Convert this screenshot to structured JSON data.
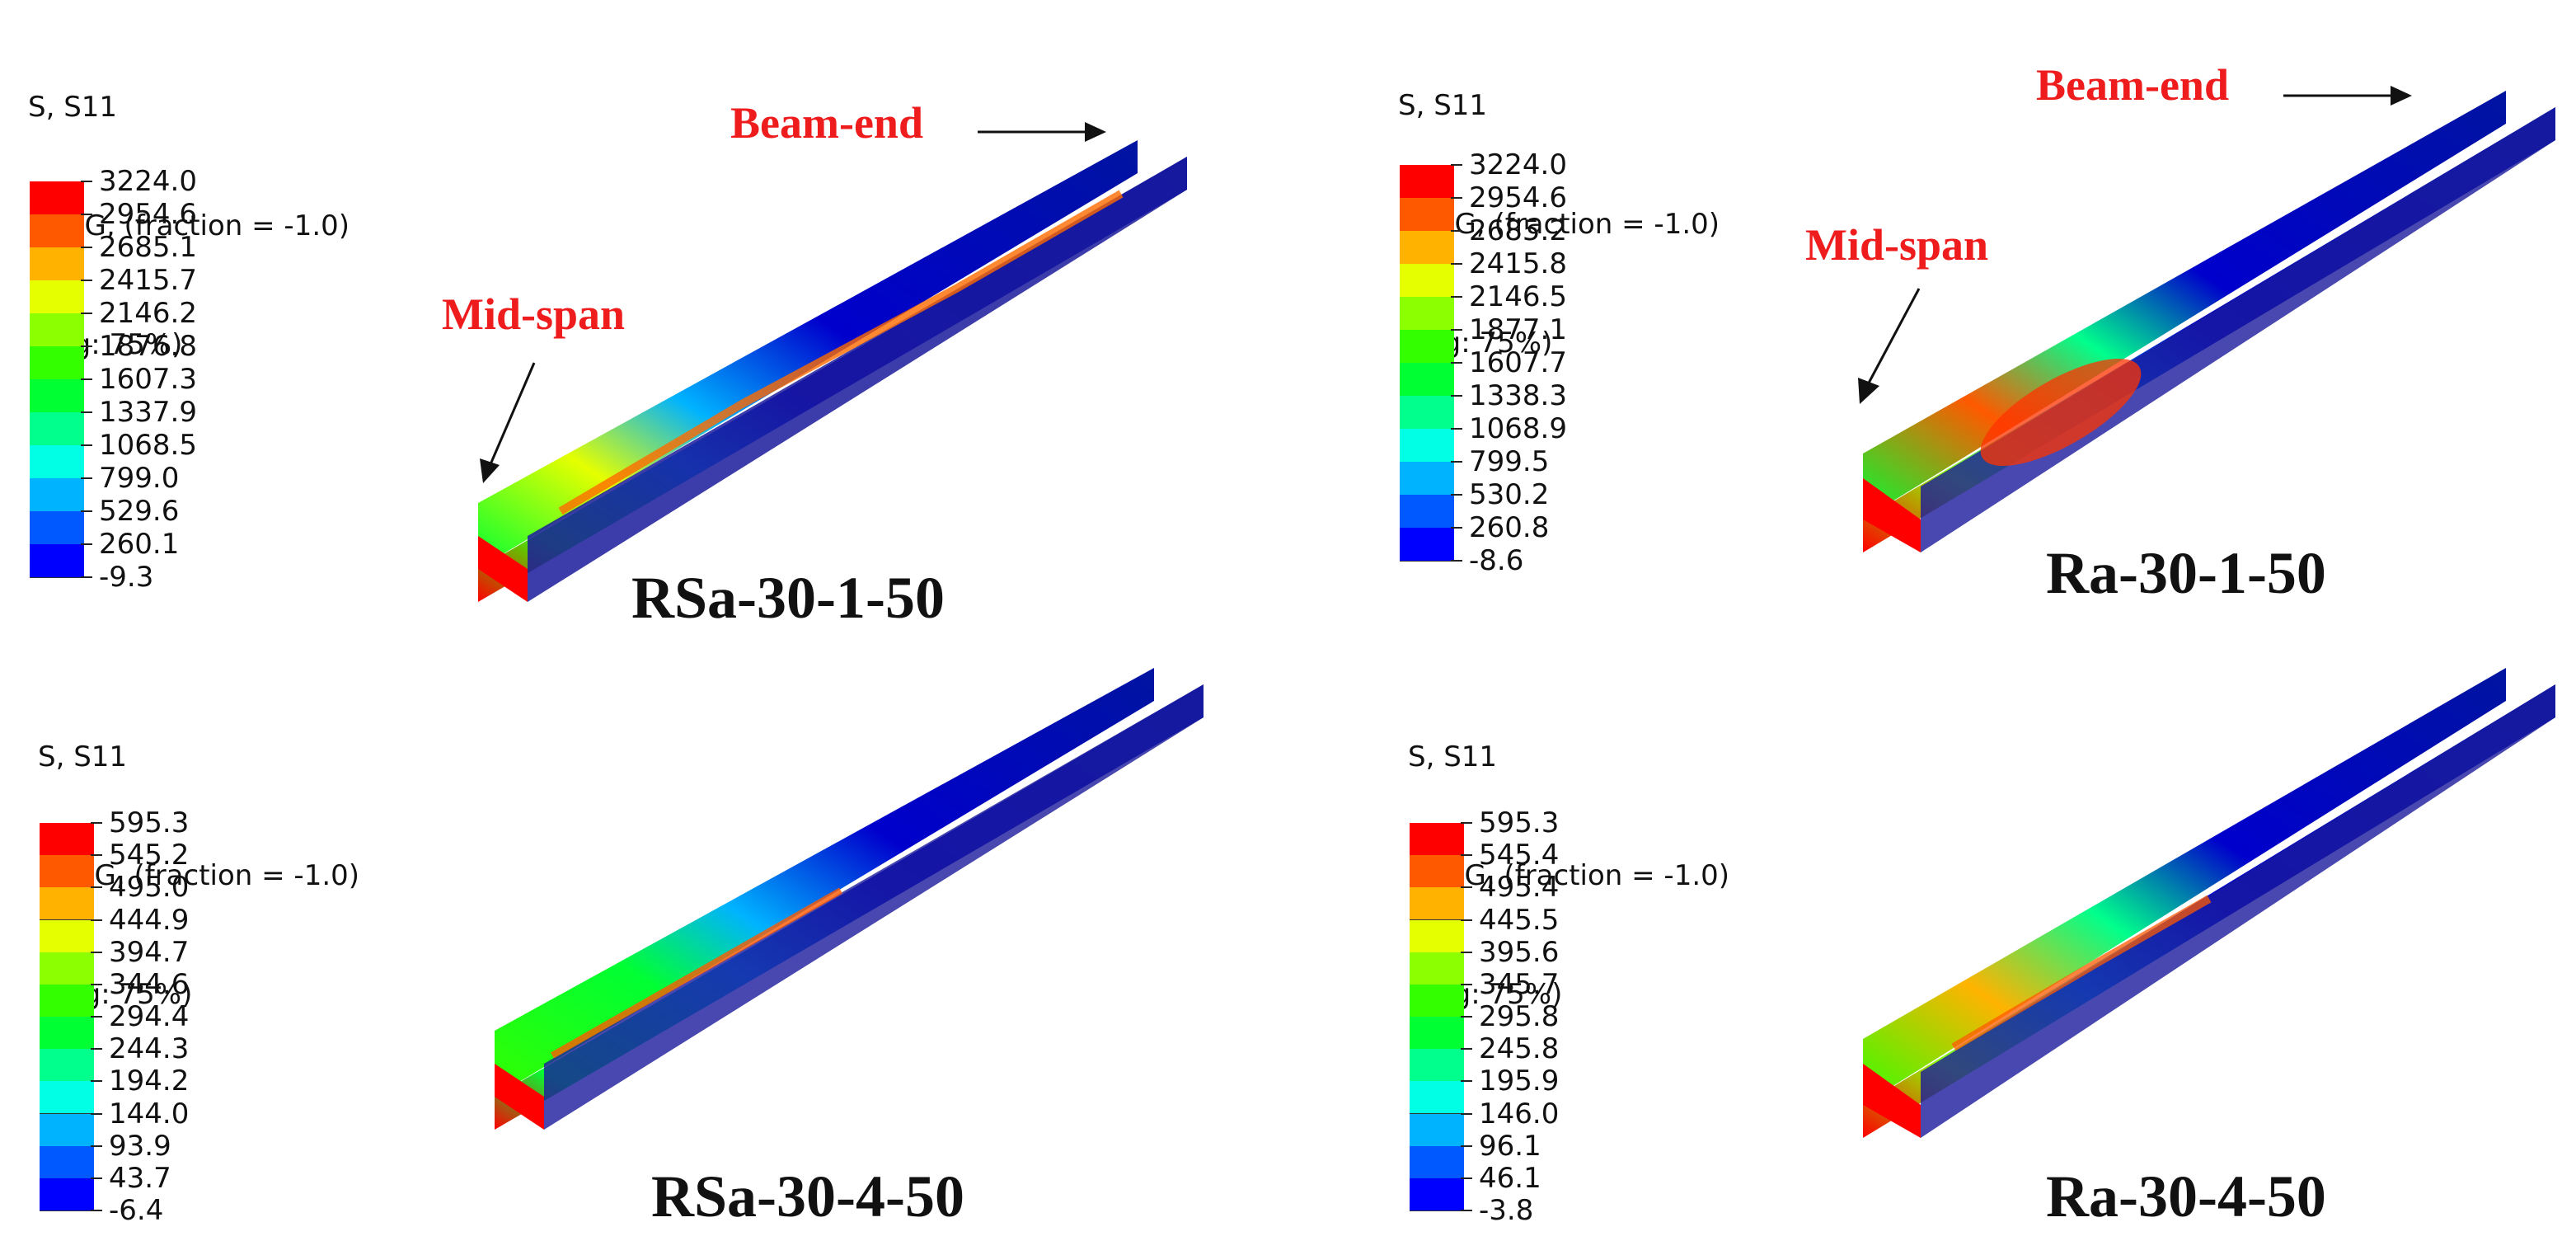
{
  "palette": [
    "#0000ff",
    "#0059ff",
    "#00b3ff",
    "#00ffe5",
    "#00ff8c",
    "#00ff33",
    "#33ff00",
    "#8cff00",
    "#e5ff00",
    "#ffb300",
    "#ff5900",
    "#ff0000"
  ],
  "annotations": {
    "beam_end": "Beam-end",
    "mid_span": "Mid-span"
  },
  "panels": [
    {
      "legend": {
        "line1": "S, S11",
        "line2": "SNEG, (fraction = -1.0)",
        "line3": "(Avg: 75%)",
        "values": [
          "3224.0",
          "2954.6",
          "2685.1",
          "2415.7",
          "2146.2",
          "1876.8",
          "1607.3",
          "1337.9",
          "1068.5",
          "799.0",
          "529.6",
          "260.1",
          "-9.3"
        ]
      },
      "caption": "RSa-30-1-50"
    },
    {
      "legend": {
        "line1": "S, S11",
        "line2": "SNEG, (fraction = -1.0)",
        "line3": "(Avg: 75%)",
        "values": [
          "3224.0",
          "2954.6",
          "2685.2",
          "2415.8",
          "2146.5",
          "1877.1",
          "1607.7",
          "1338.3",
          "1068.9",
          "799.5",
          "530.2",
          "260.8",
          "-8.6"
        ]
      },
      "caption": "Ra-30-1-50"
    },
    {
      "legend": {
        "line1": "S, S11",
        "line2": "SNEG, (fraction = -1.0)",
        "line3": "(Avg: 75%)",
        "values": [
          "595.3",
          "545.2",
          "495.0",
          "444.9",
          "394.7",
          "344.6",
          "294.4",
          "244.3",
          "194.2",
          "144.0",
          "93.9",
          "43.7",
          "-6.4"
        ]
      },
      "caption": "RSa-30-4-50"
    },
    {
      "legend": {
        "line1": "S, S11",
        "line2": "SNEG, (fraction = -1.0)",
        "line3": "(Avg: 75%)",
        "values": [
          "595.3",
          "545.4",
          "495.4",
          "445.5",
          "395.6",
          "345.7",
          "295.8",
          "245.8",
          "195.9",
          "146.0",
          "96.1",
          "46.1",
          "-3.8"
        ]
      },
      "caption": "Ra-30-4-50"
    }
  ]
}
